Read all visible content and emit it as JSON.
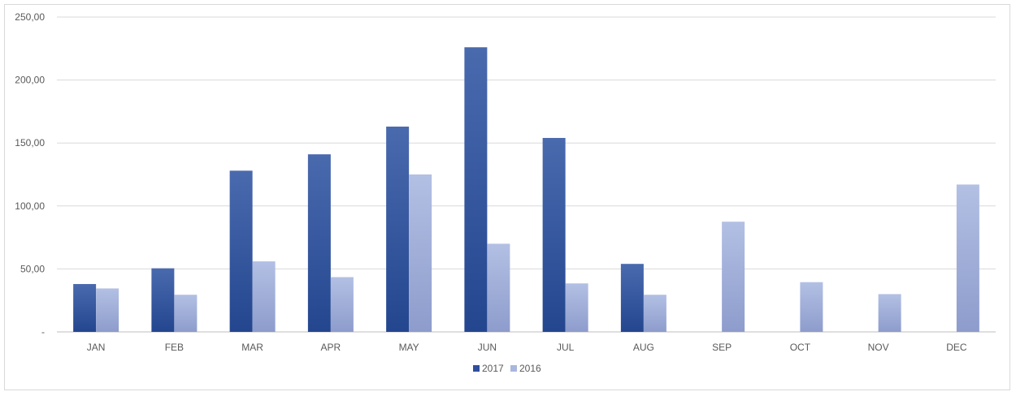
{
  "chart_data": {
    "type": "bar",
    "categories": [
      "JAN",
      "FEB",
      "MAR",
      "APR",
      "MAY",
      "JUN",
      "JUL",
      "AUG",
      "SEP",
      "OCT",
      "NOV",
      "DEC"
    ],
    "series": [
      {
        "name": "2017",
        "color": "#2f4f9e",
        "values": [
          38,
          50.5,
          128,
          141,
          163,
          226,
          154,
          54,
          0,
          0,
          0,
          0
        ]
      },
      {
        "name": "2016",
        "color": "#a9b7de",
        "values": [
          34.5,
          29.5,
          56,
          43.5,
          125,
          70,
          38.5,
          29.5,
          87.5,
          39.5,
          30,
          117
        ]
      }
    ],
    "y_ticks": [
      "-",
      "50,00",
      "100,00",
      "150,00",
      "200,00",
      "250,00"
    ],
    "ylim": [
      0,
      250
    ],
    "y_step": 50,
    "grid": true,
    "legend_position": "bottom",
    "title": "",
    "xlabel": "",
    "ylabel": ""
  }
}
